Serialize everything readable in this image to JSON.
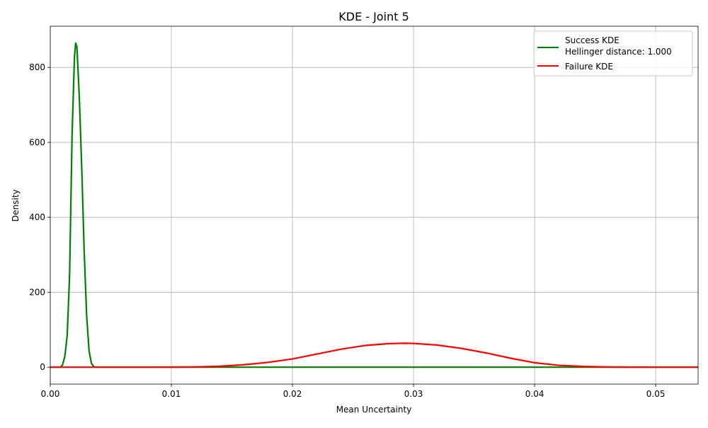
{
  "chart_data": {
    "type": "line",
    "title": "KDE - Joint 5",
    "xlabel": "Mean Uncertainty",
    "ylabel": "Density",
    "xlim": [
      0.0,
      0.0535
    ],
    "ylim": [
      -45,
      910
    ],
    "xticks": [
      0.0,
      0.01,
      0.02,
      0.03,
      0.04,
      0.05
    ],
    "xtick_labels": [
      "0.00",
      "0.01",
      "0.02",
      "0.03",
      "0.04",
      "0.05"
    ],
    "yticks": [
      0,
      200,
      400,
      600,
      800
    ],
    "ytick_labels": [
      "0",
      "200",
      "400",
      "600",
      "800"
    ],
    "grid": true,
    "legend_position": "top-right",
    "series": [
      {
        "name": "Success KDE",
        "legend_lines": [
          "Success KDE",
          "Hellinger distance: 1.000"
        ],
        "color": "#008000",
        "x": [
          0.0,
          0.0008,
          0.001,
          0.0012,
          0.0014,
          0.0016,
          0.0018,
          0.002,
          0.0021,
          0.0022,
          0.0024,
          0.0026,
          0.0028,
          0.003,
          0.0032,
          0.0034,
          0.0036,
          0.004,
          0.01,
          0.02,
          0.03,
          0.04,
          0.05,
          0.0535
        ],
        "y": [
          0,
          0,
          5,
          28,
          85,
          250,
          620,
          830,
          865,
          855,
          720,
          530,
          310,
          140,
          45,
          10,
          1,
          0,
          0,
          0,
          0,
          0,
          0,
          0
        ]
      },
      {
        "name": "Failure KDE",
        "legend_lines": [
          "Failure KDE"
        ],
        "color": "#ff0000",
        "x": [
          0.0,
          0.008,
          0.01,
          0.012,
          0.014,
          0.016,
          0.018,
          0.02,
          0.022,
          0.024,
          0.026,
          0.028,
          0.0292,
          0.03,
          0.032,
          0.034,
          0.036,
          0.038,
          0.04,
          0.042,
          0.044,
          0.046,
          0.048,
          0.05,
          0.0535
        ],
        "y": [
          0,
          0,
          0.2,
          0.7,
          2.5,
          6.5,
          13,
          22,
          35,
          48,
          58,
          63,
          64,
          63.5,
          59,
          50,
          38,
          24,
          12,
          5,
          2,
          0.6,
          0.2,
          0.05,
          0
        ]
      }
    ]
  }
}
